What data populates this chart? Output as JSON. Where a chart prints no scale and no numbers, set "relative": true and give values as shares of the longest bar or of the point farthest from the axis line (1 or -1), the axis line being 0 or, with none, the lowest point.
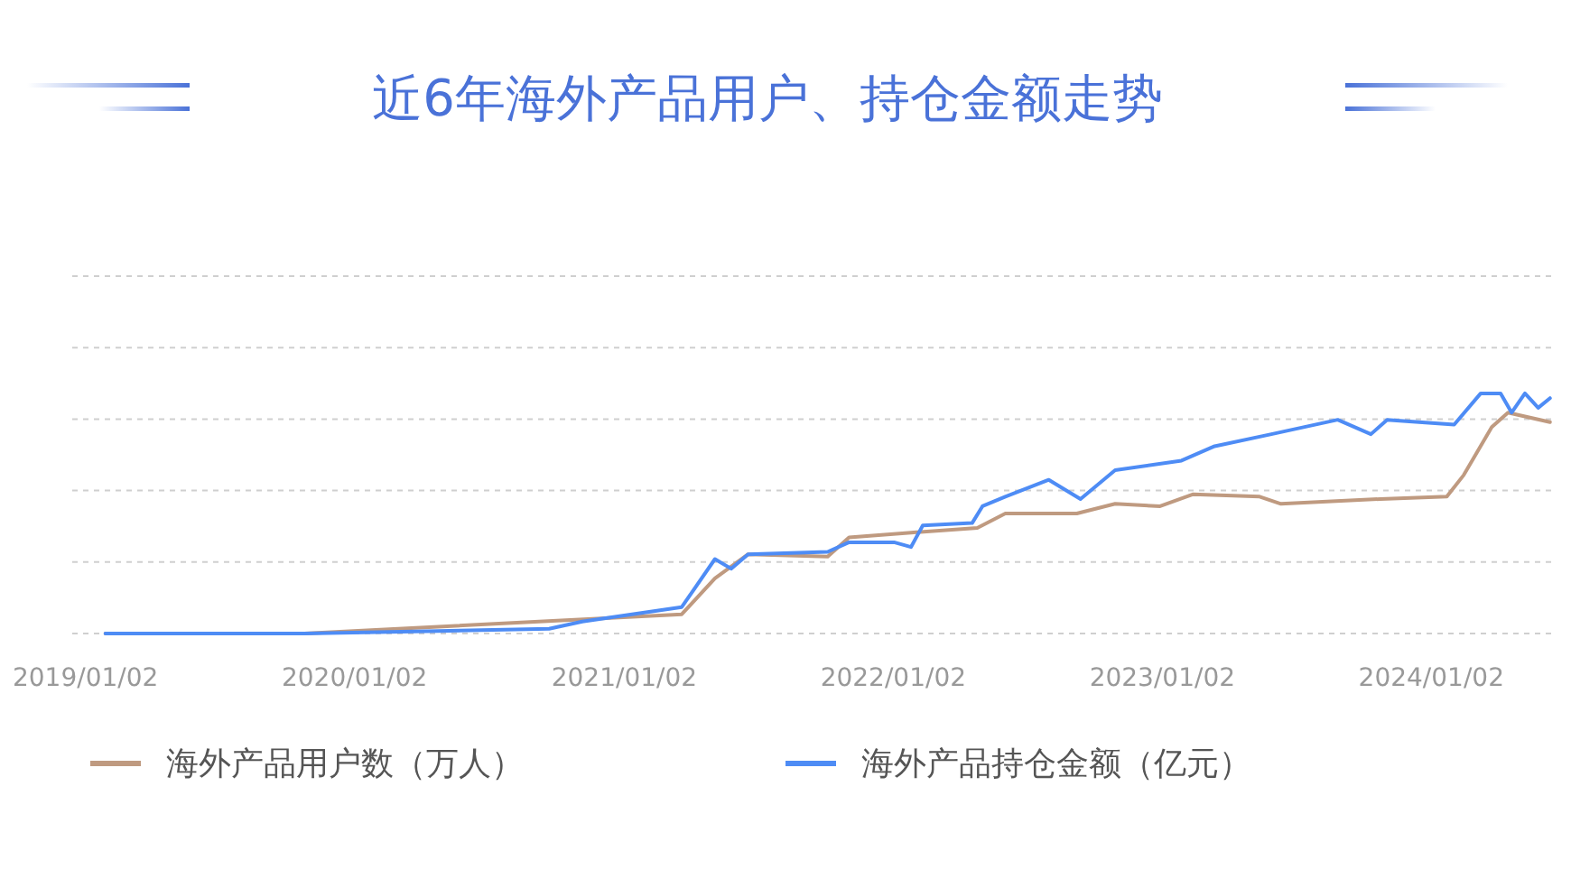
{
  "chart_data": {
    "type": "line",
    "title": "近6年海外产品用户、持仓金额走势",
    "relative": true,
    "grid": "y",
    "legend": "bottom",
    "line_style": "solid",
    "xlim": [
      "2018-12-15",
      "2024-06-15"
    ],
    "xticks": [
      {
        "value": "2019-01-02",
        "label": "2019/01/02"
      },
      {
        "value": "2020-01-02",
        "label": "2020/01/02"
      },
      {
        "value": "2021-01-02",
        "label": "2021/01/02"
      },
      {
        "value": "2022-01-02",
        "label": "2022/01/02"
      },
      {
        "value": "2023-01-02",
        "label": "2023/01/02"
      },
      {
        "value": "2024-01-02",
        "label": "2024/01/02"
      }
    ],
    "series": [
      {
        "name": "海外产品用户数（万人）",
        "color": "#bf9a80",
        "x": [
          "2019-01-29",
          "2019-10-26",
          "2021-03-21",
          "2021-05-05",
          "2021-06-19",
          "2021-10-05",
          "2021-11-03",
          "2022-01-26",
          "2022-04-26",
          "2022-06-03",
          "2022-09-08",
          "2022-10-30",
          "2022-12-30",
          "2023-02-13",
          "2023-05-14",
          "2023-06-12",
          "2023-10-25",
          "2024-01-23",
          "2024-02-15",
          "2024-03-24",
          "2024-04-15",
          "2024-06-11"
        ],
        "values": [
          0,
          0,
          0.08,
          0.23,
          0.33,
          0.32,
          0.4,
          0.42,
          0.44,
          0.5,
          0.5,
          0.54,
          0.53,
          0.58,
          0.57,
          0.54,
          0.56,
          0.57,
          0.66,
          0.86,
          0.92,
          0.88
        ]
      },
      {
        "name": "海外产品持仓金额（亿元）",
        "color": "#4e8cf5",
        "x": [
          "2019-01-29",
          "2019-10-26",
          "2020-04-24",
          "2020-09-22",
          "2020-11-06",
          "2021-03-21",
          "2021-05-05",
          "2021-05-27",
          "2021-06-19",
          "2021-10-05",
          "2021-11-03",
          "2022-01-03",
          "2022-01-26",
          "2022-02-11",
          "2022-04-19",
          "2022-05-03",
          "2022-06-03",
          "2022-08-01",
          "2022-09-13",
          "2022-10-30",
          "2023-01-28",
          "2023-03-14",
          "2023-05-30",
          "2023-08-28",
          "2023-10-12",
          "2023-11-03",
          "2024-02-02",
          "2024-03-09",
          "2024-04-05",
          "2024-04-20",
          "2024-05-08",
          "2024-05-26",
          "2024-06-11"
        ],
        "values": [
          0,
          0,
          0.01,
          0.02,
          0.05,
          0.11,
          0.31,
          0.27,
          0.33,
          0.34,
          0.38,
          0.38,
          0.36,
          0.45,
          0.46,
          0.53,
          0.57,
          0.64,
          0.56,
          0.68,
          0.72,
          0.78,
          0.83,
          0.89,
          0.83,
          0.89,
          0.87,
          1,
          1,
          0.92,
          1,
          0.94,
          0.98
        ]
      }
    ]
  }
}
